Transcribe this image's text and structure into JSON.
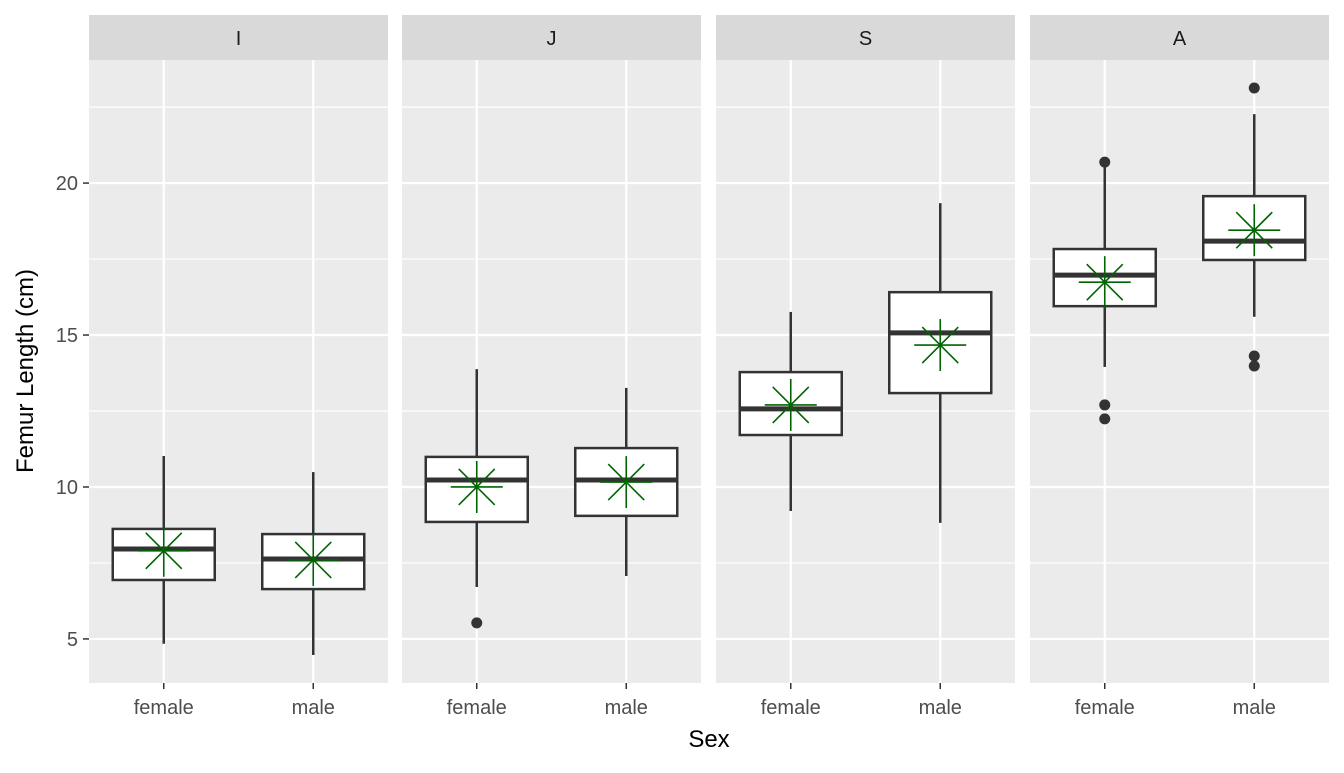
{
  "chart_data": {
    "type": "box",
    "xlabel": "Sex",
    "ylabel": "Femur Length (cm)",
    "ylim": [
      3.55,
      24.05
    ],
    "yticks": [
      5,
      10,
      15,
      20
    ],
    "grid": true,
    "mean_marker_color": "#006400",
    "panels": [
      {
        "facet": "I",
        "boxes": [
          {
            "category": "female",
            "whisker_low": 4.84,
            "q1": 6.94,
            "median": 7.96,
            "q3": 8.62,
            "whisker_high": 11.02,
            "mean": 7.9,
            "outliers": []
          },
          {
            "category": "male",
            "whisker_low": 4.47,
            "q1": 6.64,
            "median": 7.63,
            "q3": 8.45,
            "whisker_high": 10.49,
            "mean": 7.6,
            "outliers": []
          }
        ]
      },
      {
        "facet": "J",
        "boxes": [
          {
            "category": "female",
            "whisker_low": 6.71,
            "q1": 8.85,
            "median": 10.23,
            "q3": 10.99,
            "whisker_high": 13.88,
            "mean": 10.0,
            "outliers": [
              5.53
            ]
          },
          {
            "category": "male",
            "whisker_low": 7.07,
            "q1": 9.05,
            "median": 10.23,
            "q3": 11.28,
            "whisker_high": 13.26,
            "mean": 10.16,
            "outliers": []
          }
        ]
      },
      {
        "facet": "S",
        "boxes": [
          {
            "category": "female",
            "whisker_low": 9.21,
            "q1": 11.71,
            "median": 12.57,
            "q3": 13.78,
            "whisker_high": 15.76,
            "mean": 12.7,
            "outliers": []
          },
          {
            "category": "male",
            "whisker_low": 8.82,
            "q1": 13.09,
            "median": 15.07,
            "q3": 16.41,
            "whisker_high": 19.34,
            "mean": 14.67,
            "outliers": []
          }
        ]
      },
      {
        "facet": "A",
        "boxes": [
          {
            "category": "female",
            "whisker_low": 13.95,
            "q1": 15.95,
            "median": 16.97,
            "q3": 17.83,
            "whisker_high": 20.6,
            "mean": 16.74,
            "outliers": [
              20.69,
              12.7,
              12.24
            ]
          },
          {
            "category": "male",
            "whisker_low": 15.6,
            "q1": 17.47,
            "median": 18.09,
            "q3": 19.57,
            "whisker_high": 22.27,
            "mean": 18.45,
            "outliers": [
              23.13,
              14.31,
              13.98
            ]
          }
        ]
      }
    ]
  }
}
